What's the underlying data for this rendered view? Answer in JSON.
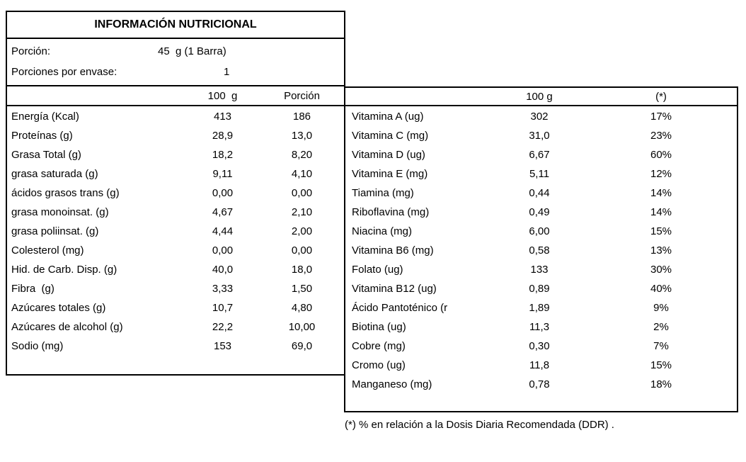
{
  "title": "INFORMACIÓN NUTRICIONAL",
  "serving": {
    "label": "Porción:",
    "value": "45  g (1 Barra)",
    "per_package_label": "Porciones por envase:",
    "per_package_value": "1"
  },
  "left_table": {
    "col1_header": "100  g",
    "col2_header": "Porción",
    "rows": [
      {
        "label": "Energía (Kcal)",
        "per100": "413",
        "portion": "186"
      },
      {
        "label": "Proteínas (g)",
        "per100": "28,9",
        "portion": "13,0"
      },
      {
        "label": "Grasa Total (g)",
        "per100": "18,2",
        "portion": "8,20"
      },
      {
        "label": "grasa saturada (g)",
        "per100": "9,11",
        "portion": "4,10"
      },
      {
        "label": "ácidos grasos trans (g)",
        "per100": "0,00",
        "portion": "0,00"
      },
      {
        "label": "grasa monoinsat. (g)",
        "per100": "4,67",
        "portion": "2,10"
      },
      {
        "label": "grasa poliinsat. (g)",
        "per100": "4,44",
        "portion": "2,00"
      },
      {
        "label": "Colesterol (mg)",
        "per100": "0,00",
        "portion": "0,00"
      },
      {
        "label": "Hid. de Carb. Disp. (g)",
        "per100": "40,0",
        "portion": "18,0"
      },
      {
        "label": "Fibra  (g)",
        "per100": "3,33",
        "portion": "1,50"
      },
      {
        "label": "Azúcares totales (g)",
        "per100": "10,7",
        "portion": "4,80"
      },
      {
        "label": "Azúcares de alcohol (g)",
        "per100": "22,2",
        "portion": "10,00"
      },
      {
        "label": "Sodio (mg)",
        "per100": "153",
        "portion": "69,0"
      }
    ]
  },
  "right_table": {
    "col1_header": "100 g",
    "col2_header": "(*)",
    "rows": [
      {
        "label": "Vitamina A (ug)",
        "per100": "302",
        "ddr": "17%"
      },
      {
        "label": "Vitamina C (mg)",
        "per100": "31,0",
        "ddr": "23%"
      },
      {
        "label": "Vitamina D (ug)",
        "per100": "6,67",
        "ddr": "60%"
      },
      {
        "label": "Vitamina E (mg)",
        "per100": "5,11",
        "ddr": "12%"
      },
      {
        "label": "Tiamina (mg)",
        "per100": "0,44",
        "ddr": "14%"
      },
      {
        "label": "Riboflavina (mg)",
        "per100": "0,49",
        "ddr": "14%"
      },
      {
        "label": "Niacina (mg)",
        "per100": "6,00",
        "ddr": "15%"
      },
      {
        "label": "Vitamina B6 (mg)",
        "per100": "0,58",
        "ddr": "13%"
      },
      {
        "label": "Folato (ug)",
        "per100": "133",
        "ddr": "30%"
      },
      {
        "label": "Vitamina B12 (ug)",
        "per100": "0,89",
        "ddr": "40%"
      },
      {
        "label": "Ácido Pantoténico (r",
        "per100": "1,89",
        "ddr": "9%"
      },
      {
        "label": "Biotina (ug)",
        "per100": "11,3",
        "ddr": "2%"
      },
      {
        "label": "Cobre (mg)",
        "per100": "0,30",
        "ddr": "7%"
      },
      {
        "label": "Cromo (ug)",
        "per100": "11,8",
        "ddr": "15%"
      },
      {
        "label": "Manganeso (mg)",
        "per100": "0,78",
        "ddr": "18%"
      }
    ]
  },
  "footnote": "(*) % en relación a la Dosis Diaria Recomendada (DDR) .",
  "colors": {
    "text": "#000000",
    "background": "#ffffff",
    "border": "#000000"
  }
}
